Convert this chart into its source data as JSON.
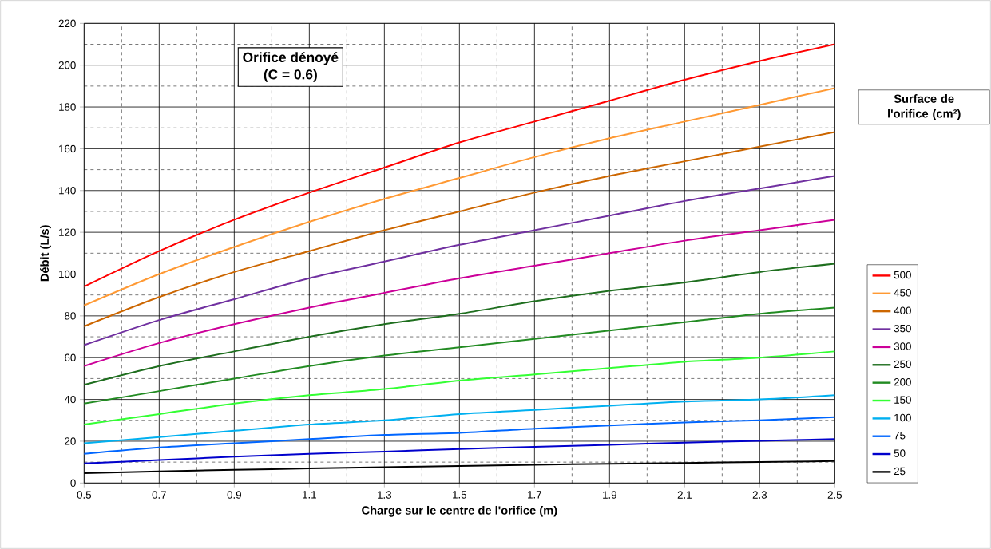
{
  "chart_data": {
    "type": "line",
    "title": "Orifice dénoyé",
    "subtitle": "(C = 0.6)",
    "xlabel": "Charge sur le centre de l'orifice (m)",
    "ylabel": "Débit (L/s)",
    "legend_title": "Surface de l'orifice (cm²)",
    "x": [
      0.5,
      0.7,
      0.9,
      1.1,
      1.3,
      1.5,
      1.7,
      1.9,
      2.1,
      2.3,
      2.5
    ],
    "series": [
      {
        "name": "500",
        "color": "#ff0000",
        "values": [
          94,
          111,
          126,
          139,
          151,
          163,
          173,
          183,
          193,
          202,
          210
        ]
      },
      {
        "name": "450",
        "color": "#ff9933",
        "values": [
          85,
          100,
          113,
          125,
          136,
          146,
          156,
          165,
          173,
          181,
          189
        ]
      },
      {
        "name": "400",
        "color": "#cc6600",
        "values": [
          75,
          89,
          101,
          111,
          121,
          130,
          139,
          147,
          154,
          161,
          168
        ]
      },
      {
        "name": "350",
        "color": "#7030a0",
        "values": [
          66,
          78,
          88,
          98,
          106,
          114,
          121,
          128,
          135,
          141,
          147
        ]
      },
      {
        "name": "300",
        "color": "#cc0099",
        "values": [
          56,
          67,
          76,
          84,
          91,
          98,
          104,
          110,
          116,
          121,
          126
        ]
      },
      {
        "name": "250",
        "color": "#1e6e1e",
        "values": [
          47,
          56,
          63,
          70,
          76,
          81,
          87,
          92,
          96,
          101,
          105
        ]
      },
      {
        "name": "200",
        "color": "#228b22",
        "values": [
          38,
          44,
          50,
          56,
          61,
          65,
          69,
          73,
          77,
          81,
          84
        ]
      },
      {
        "name": "150",
        "color": "#33ff33",
        "values": [
          28,
          33,
          38,
          42,
          45,
          49,
          52,
          55,
          58,
          60,
          63
        ]
      },
      {
        "name": "100",
        "color": "#00b0f0",
        "values": [
          19,
          22,
          25,
          28,
          30,
          33,
          35,
          37,
          39,
          40,
          42
        ]
      },
      {
        "name": "75",
        "color": "#0066ff",
        "values": [
          14,
          17,
          19,
          21,
          23,
          24,
          26,
          27.5,
          29,
          30,
          31.5
        ]
      },
      {
        "name": "50",
        "color": "#0000cc",
        "values": [
          9.4,
          11,
          12.6,
          14,
          15,
          16.3,
          17.3,
          18.3,
          19.3,
          20.2,
          21
        ]
      },
      {
        "name": "25",
        "color": "#000000",
        "values": [
          4.7,
          5.6,
          6.3,
          7,
          7.6,
          8.1,
          8.7,
          9.2,
          9.6,
          10.1,
          10.5
        ]
      }
    ],
    "xlim": [
      0.5,
      2.5
    ],
    "ylim": [
      0,
      220
    ],
    "xticks": [
      0.5,
      0.7,
      0.9,
      1.1,
      1.3,
      1.5,
      1.7,
      1.9,
      2.1,
      2.3,
      2.5
    ],
    "yticks": [
      0,
      20,
      40,
      60,
      80,
      100,
      120,
      140,
      160,
      180,
      200,
      220
    ],
    "grid": true,
    "legend": "right",
    "marker": "none",
    "line_style": "solid"
  }
}
